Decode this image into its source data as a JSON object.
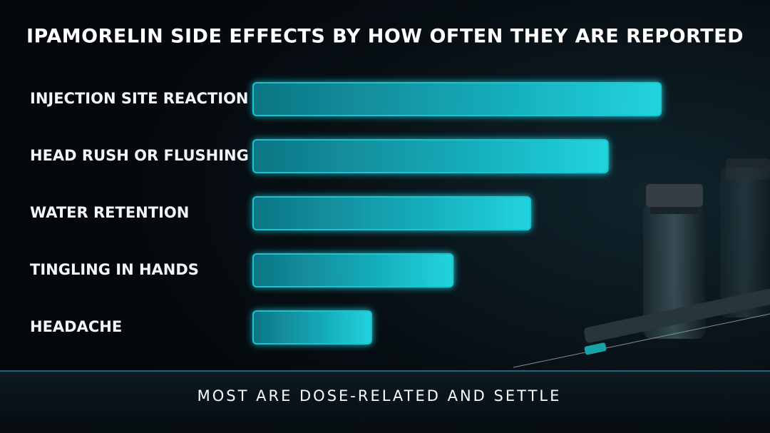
{
  "chart_data": {
    "type": "bar",
    "orientation": "horizontal",
    "title": "IPAMORELIN SIDE EFFECTS BY HOW OFTEN THEY ARE REPORTED",
    "categories": [
      "INJECTION SITE REACTION",
      "HEAD RUSH OR FLUSHING",
      "WATER RETENTION",
      "TINGLING IN HANDS",
      "HEADACHE"
    ],
    "values": [
      100,
      87,
      68,
      49,
      29
    ],
    "xlim": [
      0,
      100
    ],
    "color": "#1fd3e0",
    "annotation": "MOST ARE DOSE-RELATED AND SETTLE"
  }
}
